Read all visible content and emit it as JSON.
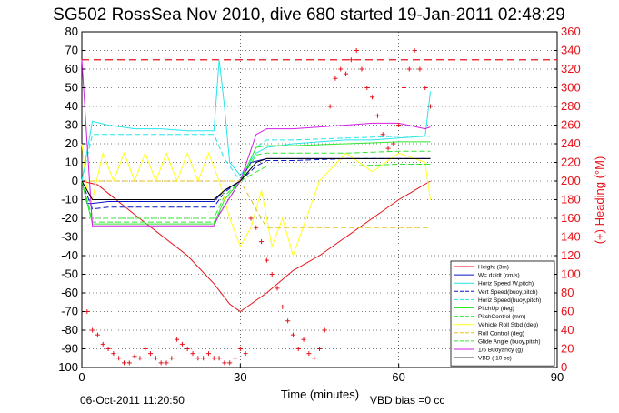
{
  "colors": {
    "red": "#e8121a",
    "blue": "#0a14c8",
    "cyan": "#27e6ea",
    "green": "#2ee82e",
    "yellow": "#ffff1e",
    "magenta": "#d21ee6",
    "black": "#000000",
    "gold": "#e8c21a"
  },
  "chart_data": {
    "type": "line",
    "title": "SG502 RossSea Nov 2010, dive 680 started 19-Jan-2011 02:48:29",
    "xlabel": "Time (minutes)",
    "ylabel_right": "(+) Heading (°M)",
    "xlim": [
      0,
      90
    ],
    "ylim_left": [
      -100,
      80
    ],
    "ylim_right": [
      0,
      360
    ],
    "x_ticks": [
      "0",
      "30",
      "60",
      "90"
    ],
    "y_ticks_left": [
      "80",
      "70",
      "60",
      "50",
      "40",
      "30",
      "20",
      "10",
      "0",
      "-10",
      "-20",
      "-30",
      "-40",
      "-50",
      "-60",
      "-70",
      "-80",
      "-90",
      "-100"
    ],
    "y_ticks_right": [
      "360",
      "340",
      "320",
      "300",
      "280",
      "260",
      "240",
      "220",
      "200",
      "180",
      "160",
      "140",
      "120",
      "100",
      "80",
      "60",
      "40",
      "20",
      "0"
    ],
    "grid": true,
    "legend_position": "bottom-right",
    "footer_date": "06-Oct-2011 11:20:50",
    "footer_vbd": "VBD bias =0 cc",
    "heading_reference_line": 330,
    "series": [
      {
        "name": "Height (3m)",
        "color": "red",
        "style": "solid",
        "x": [
          0,
          3,
          10,
          20,
          25,
          28,
          30,
          35,
          40,
          45,
          50,
          55,
          60,
          63,
          66
        ],
        "y": [
          0,
          -2,
          -18,
          -40,
          -55,
          -66,
          -70,
          -60,
          -48,
          -40,
          -30,
          -20,
          -10,
          -5,
          0
        ]
      },
      {
        "name": "W= dz/dt (cm/s)",
        "color": "blue",
        "style": "solid",
        "x": [
          0,
          1,
          2,
          5,
          10,
          20,
          25,
          27,
          30,
          32,
          35,
          40,
          45,
          50,
          55,
          60,
          65,
          66
        ],
        "y": [
          0,
          -12,
          -12,
          -11,
          -11,
          -11,
          -11,
          -5,
          0,
          10,
          12,
          12,
          12,
          12,
          12,
          12,
          12,
          12
        ]
      },
      {
        "name": "Horiz Speed W,pitch)",
        "color": "cyan",
        "style": "solid",
        "x": [
          0,
          2,
          5,
          10,
          15,
          20,
          25,
          26,
          27,
          28,
          30,
          33,
          35,
          40,
          45,
          50,
          55,
          60,
          65,
          66
        ],
        "y": [
          0,
          32,
          30,
          28,
          28,
          27,
          27,
          65,
          40,
          10,
          3,
          15,
          18,
          20,
          21,
          22,
          22,
          23,
          24,
          48
        ]
      },
      {
        "name": "Vert Speed(buoy,pitch)",
        "color": "blue",
        "style": "dash",
        "x": [
          0,
          2,
          5,
          10,
          20,
          25,
          27,
          30,
          33,
          35,
          40,
          50,
          60,
          66
        ],
        "y": [
          0,
          -15,
          -14,
          -14,
          -14,
          -14,
          -6,
          0,
          8,
          11,
          11,
          12,
          12,
          12
        ]
      },
      {
        "name": "Horiz Speed(buoy,pitch)",
        "color": "cyan",
        "style": "dash",
        "x": [
          0,
          2,
          5,
          10,
          20,
          25,
          27,
          30,
          33,
          35,
          40,
          50,
          60,
          66
        ],
        "y": [
          0,
          25,
          25,
          25,
          25,
          25,
          12,
          0,
          18,
          22,
          22,
          23,
          24,
          24
        ]
      },
      {
        "name": "PitchUp (deg)",
        "color": "green",
        "style": "solid",
        "x": [
          0,
          2,
          5,
          10,
          20,
          25,
          27,
          30,
          33,
          35,
          40,
          50,
          60,
          66
        ],
        "y": [
          0,
          -23,
          -23,
          -23,
          -23,
          -23,
          -10,
          0,
          18,
          19,
          19,
          20,
          21,
          21
        ]
      },
      {
        "name": "PitchControl (mm)",
        "color": "green",
        "style": "dash",
        "x": [
          0,
          2,
          10,
          20,
          25,
          27,
          30,
          33,
          35,
          40,
          50,
          60,
          66
        ],
        "y": [
          0,
          -20,
          -20,
          -20,
          -20,
          -8,
          0,
          14,
          15,
          15,
          15,
          16,
          16
        ]
      },
      {
        "name": "Vehicle Roll Stbd (deg)",
        "color": "yellow",
        "style": "solid",
        "x": [
          0,
          1,
          2,
          4,
          6,
          8,
          10,
          12,
          14,
          16,
          18,
          20,
          22,
          24,
          26,
          28,
          30,
          32,
          34,
          36,
          38,
          40,
          45,
          50,
          55,
          60,
          65,
          66
        ],
        "y": [
          20,
          -5,
          -10,
          15,
          0,
          15,
          0,
          15,
          0,
          15,
          0,
          15,
          0,
          15,
          0,
          -20,
          -35,
          -25,
          -5,
          -35,
          -20,
          -40,
          0,
          15,
          5,
          15,
          10,
          -10
        ]
      },
      {
        "name": "Roll Control (deg)",
        "color": "gold",
        "style": "dash",
        "x": [
          0,
          5,
          10,
          20,
          25,
          27,
          30,
          35,
          40,
          50,
          60,
          66
        ],
        "y": [
          0,
          0,
          0,
          0,
          0,
          0,
          0,
          -25,
          -25,
          -25,
          -25,
          -25
        ]
      },
      {
        "name": "Glide Angle (buoy,pitch)",
        "color": "green",
        "style": "dash",
        "x": [
          0,
          2,
          10,
          20,
          25,
          30,
          35,
          40,
          50,
          60,
          66
        ],
        "y": [
          0,
          -22,
          -22,
          -22,
          -22,
          0,
          8,
          8,
          8,
          9,
          9
        ]
      },
      {
        "name": "1/5 Buoyancy (g)",
        "color": "magenta",
        "style": "solid",
        "x": [
          0,
          2,
          5,
          10,
          20,
          25,
          26,
          30,
          33,
          35,
          40,
          45,
          50,
          55,
          60,
          65,
          66
        ],
        "y": [
          65,
          -24,
          -24,
          -24,
          -24,
          -24,
          -18,
          0,
          25,
          28,
          28,
          29,
          30,
          31,
          31,
          28,
          29
        ]
      },
      {
        "name": "VBD ( 10 cc)",
        "color": "black",
        "style": "solid",
        "x": [
          0,
          2,
          5,
          10,
          20,
          25,
          27,
          30,
          33,
          35,
          40,
          50,
          60,
          65,
          66
        ],
        "y": [
          0,
          -10,
          -10,
          -10,
          -10,
          -10,
          -5,
          0,
          10,
          12,
          12,
          12,
          12,
          12,
          12
        ]
      }
    ],
    "heading_series": {
      "color": "red",
      "marker": "+",
      "x": [
        1,
        2,
        3,
        4,
        5,
        6,
        7,
        8,
        9,
        10,
        11,
        12,
        13,
        14,
        15,
        16,
        17,
        18,
        19,
        20,
        21,
        22,
        23,
        24,
        25,
        26,
        27,
        28,
        29,
        30,
        31,
        32,
        33,
        34,
        35,
        36,
        37,
        38,
        39,
        40,
        41,
        42,
        43,
        44,
        45,
        46,
        47,
        48,
        49,
        50,
        51,
        52,
        53,
        54,
        55,
        56,
        57,
        58,
        59,
        60,
        61,
        62,
        63,
        64,
        65,
        66
      ],
      "y": [
        60,
        40,
        35,
        25,
        20,
        15,
        10,
        5,
        5,
        12,
        10,
        20,
        15,
        10,
        5,
        5,
        10,
        30,
        25,
        20,
        15,
        10,
        10,
        15,
        10,
        10,
        5,
        5,
        10,
        20,
        15,
        160,
        150,
        135,
        115,
        100,
        85,
        65,
        50,
        35,
        20,
        30,
        15,
        10,
        20,
        40,
        280,
        310,
        320,
        315,
        330,
        340,
        320,
        300,
        290,
        270,
        250,
        235,
        240,
        260,
        300,
        320,
        340,
        320,
        300,
        280
      ]
    }
  }
}
